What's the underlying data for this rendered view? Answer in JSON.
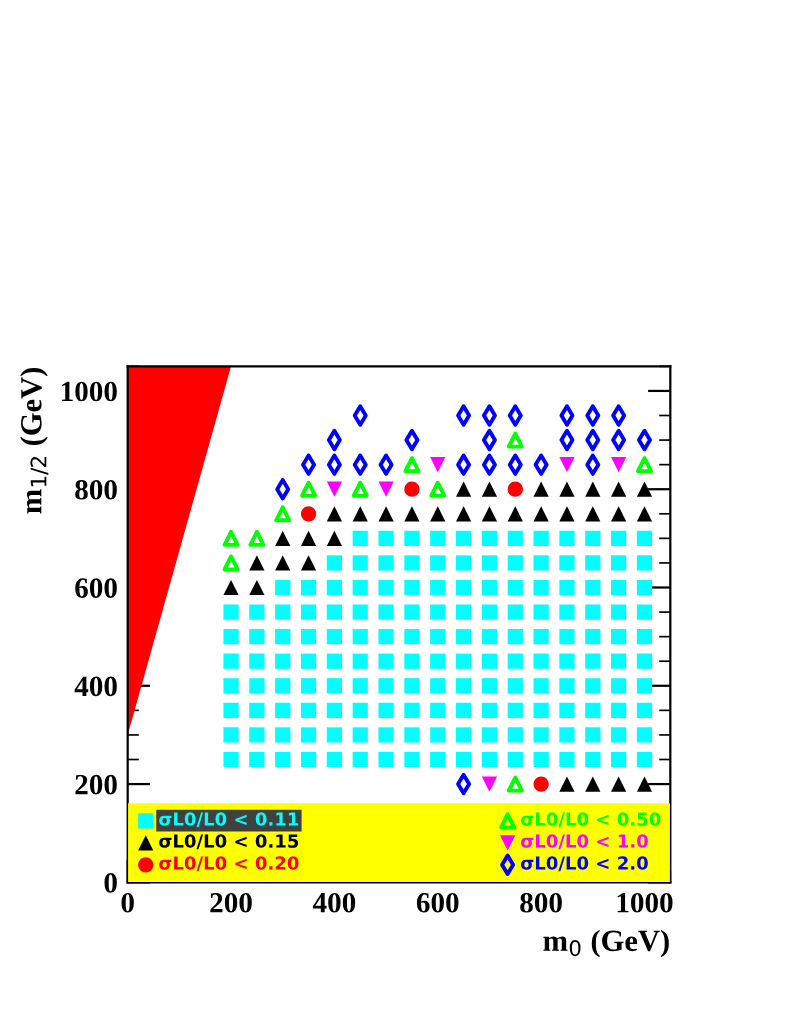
{
  "chart_data": {
    "type": "scatter",
    "xlabel": "m$_{0}$ (GeV)",
    "ylabel": "m$_{1/2}$ (GeV)",
    "xlim": [
      0,
      1050
    ],
    "ylim": [
      0,
      1050
    ],
    "xticks": [
      0,
      200,
      400,
      600,
      800,
      1000
    ],
    "yticks": [
      0,
      200,
      400,
      600,
      800,
      1000
    ],
    "grid": false,
    "legend": "bottom",
    "series": [
      {
        "name": "σL0/L0 < 0.11",
        "color": "#00ffff",
        "marker": "square",
        "x": [
          200,
          250,
          300,
          350,
          400,
          450,
          500,
          550,
          600,
          650,
          700,
          750,
          800,
          850,
          900,
          950,
          1000,
          200,
          250,
          300,
          350,
          400,
          450,
          500,
          550,
          600,
          650,
          700,
          750,
          800,
          850,
          900,
          950,
          1000,
          200,
          250,
          300,
          350,
          400,
          450,
          500,
          550,
          600,
          650,
          700,
          750,
          800,
          850,
          900,
          950,
          1000,
          200,
          250,
          300,
          350,
          400,
          450,
          500,
          550,
          600,
          650,
          700,
          750,
          800,
          850,
          900,
          950,
          1000,
          200,
          250,
          300,
          350,
          400,
          450,
          500,
          550,
          600,
          650,
          700,
          750,
          800,
          850,
          900,
          950,
          1000,
          200,
          250,
          300,
          350,
          400,
          450,
          500,
          550,
          600,
          650,
          700,
          750,
          800,
          850,
          900,
          950,
          1000,
          200,
          250,
          300,
          350,
          400,
          450,
          500,
          550,
          600,
          650,
          700,
          750,
          800,
          850,
          900,
          950,
          1000,
          300,
          350,
          400,
          450,
          500,
          550,
          600,
          650,
          700,
          750,
          800,
          850,
          900,
          950,
          1000,
          400,
          450,
          500,
          550,
          600,
          650,
          700,
          750,
          800,
          850,
          900,
          950,
          1000,
          450,
          500,
          550,
          600,
          650,
          700,
          750,
          800,
          850,
          900,
          950,
          1000
        ],
        "values": [
          250,
          250,
          250,
          250,
          250,
          250,
          250,
          250,
          250,
          250,
          250,
          250,
          250,
          250,
          250,
          250,
          250,
          300,
          300,
          300,
          300,
          300,
          300,
          300,
          300,
          300,
          300,
          300,
          300,
          300,
          300,
          300,
          300,
          300,
          350,
          350,
          350,
          350,
          350,
          350,
          350,
          350,
          350,
          350,
          350,
          350,
          350,
          350,
          350,
          350,
          350,
          400,
          400,
          400,
          400,
          400,
          400,
          400,
          400,
          400,
          400,
          400,
          400,
          400,
          400,
          400,
          400,
          400,
          450,
          450,
          450,
          450,
          450,
          450,
          450,
          450,
          450,
          450,
          450,
          450,
          450,
          450,
          450,
          450,
          450,
          500,
          500,
          500,
          500,
          500,
          500,
          500,
          500,
          500,
          500,
          500,
          500,
          500,
          500,
          500,
          500,
          500,
          550,
          550,
          550,
          550,
          550,
          550,
          550,
          550,
          550,
          550,
          550,
          550,
          550,
          550,
          550,
          550,
          550,
          600,
          600,
          600,
          600,
          600,
          600,
          600,
          600,
          600,
          600,
          600,
          600,
          600,
          600,
          600,
          650,
          650,
          650,
          650,
          650,
          650,
          650,
          650,
          650,
          650,
          650,
          650,
          650,
          700,
          700,
          700,
          700,
          700,
          700,
          700,
          700,
          700,
          700,
          700,
          700
        ]
      },
      {
        "name": "σL0/L0 < 0.15",
        "color": "#000000",
        "marker": "triangle",
        "x": [
          200,
          250,
          250,
          300,
          350,
          300,
          350,
          400,
          400,
          450,
          500,
          550,
          600,
          650,
          700,
          750,
          800,
          850,
          900,
          950,
          1000,
          650,
          700,
          800,
          850,
          900,
          950,
          1000,
          850,
          900,
          950,
          1000
        ],
        "values": [
          600,
          600,
          650,
          650,
          650,
          700,
          700,
          700,
          750,
          750,
          750,
          750,
          750,
          750,
          750,
          750,
          750,
          750,
          750,
          750,
          750,
          800,
          800,
          800,
          800,
          800,
          800,
          800,
          200,
          200,
          200,
          200
        ]
      },
      {
        "name": "σL0/L0 < 0.20",
        "color": "#ff0000",
        "marker": "circle",
        "x": [
          350,
          550,
          750,
          800
        ],
        "values": [
          750,
          800,
          800,
          200
        ]
      },
      {
        "name": "σL0/L0 < 0.50",
        "color": "#00ff00",
        "marker": "triangle_open",
        "x": [
          200,
          250,
          200,
          300,
          350,
          450,
          600,
          550,
          1000,
          750,
          750
        ],
        "values": [
          700,
          700,
          650,
          750,
          800,
          800,
          800,
          850,
          850,
          900,
          200
        ]
      },
      {
        "name": "σL0/L0 < 1.0",
        "color": "#ff00ff",
        "marker": "triangle_down",
        "x": [
          400,
          500,
          600,
          850,
          950,
          700
        ],
        "values": [
          800,
          800,
          850,
          850,
          850,
          200
        ]
      },
      {
        "name": "σL0/L0 < 2.0",
        "color": "#0000ff",
        "marker": "diamond_open",
        "x": [
          450,
          400,
          550,
          350,
          400,
          450,
          500,
          300,
          650,
          700,
          750,
          850,
          900,
          950,
          700,
          850,
          900,
          950,
          1000,
          650,
          700,
          750,
          800,
          900,
          650
        ],
        "values": [
          950,
          900,
          900,
          850,
          850,
          850,
          850,
          800,
          950,
          950,
          950,
          950,
          950,
          950,
          900,
          900,
          900,
          900,
          900,
          850,
          850,
          850,
          850,
          850,
          200
        ]
      },
      {
        "type": "area",
        "color": "#ff0000",
        "x": [
          0,
          200
        ],
        "values": [
          300,
          1050
        ]
      }
    ]
  }
}
